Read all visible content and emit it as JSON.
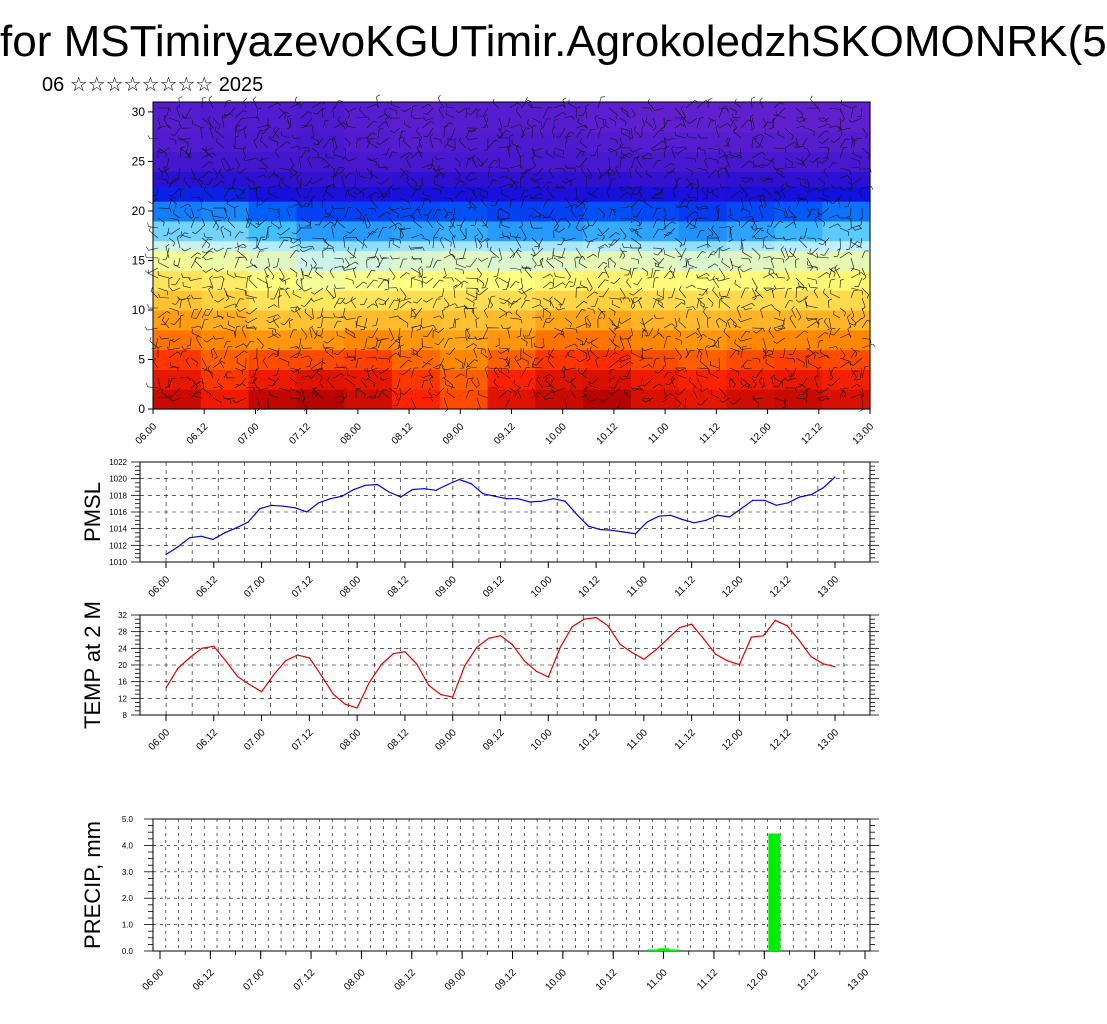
{
  "header": {
    "title": "for MSTimiryazevoKGUTimir.AgrokoledzhSKOMONRK(5",
    "subtitle": "06 ☆☆☆☆☆☆☆☆ 2025"
  },
  "chart_data": [
    {
      "type": "heatmap",
      "title": "",
      "ylim": [
        0,
        31
      ],
      "yticks": [
        0,
        5,
        10,
        15,
        20,
        25,
        30
      ],
      "xticks": [
        "06.00",
        "06.12",
        "07.00",
        "07.12",
        "08.00",
        "08.12",
        "09.00",
        "09.12",
        "10.00",
        "10.12",
        "11.00",
        "11.12",
        "12.00",
        "12.12",
        "13.00"
      ],
      "colormap": [
        "#b00000",
        "#ff2200",
        "#ff8800",
        "#ffd040",
        "#ffff80",
        "#c0f0ff",
        "#40c0ff",
        "#0060ff",
        "#1010e0",
        "#3010d0",
        "#6020d0"
      ],
      "overlay": "wind barbs",
      "levels": [
        0,
        2,
        4,
        6,
        8,
        10,
        12,
        14,
        16,
        17,
        19,
        21,
        22.5,
        24,
        26,
        28,
        31
      ],
      "values": [
        [
          0.97,
          0.92,
          0.98,
          0.99,
          0.96,
          0.9,
          0.86,
          0.94,
          0.97,
          0.99,
          0.95,
          0.93,
          0.96,
          0.97,
          0.95
        ],
        [
          0.93,
          0.88,
          0.92,
          0.94,
          0.93,
          0.88,
          0.84,
          0.9,
          0.94,
          0.95,
          0.92,
          0.9,
          0.92,
          0.93,
          0.91
        ],
        [
          0.88,
          0.84,
          0.86,
          0.86,
          0.87,
          0.83,
          0.8,
          0.84,
          0.88,
          0.89,
          0.86,
          0.84,
          0.86,
          0.87,
          0.86
        ],
        [
          0.82,
          0.8,
          0.78,
          0.78,
          0.8,
          0.78,
          0.76,
          0.78,
          0.82,
          0.82,
          0.8,
          0.78,
          0.8,
          0.8,
          0.8
        ],
        [
          0.77,
          0.75,
          0.72,
          0.72,
          0.73,
          0.73,
          0.72,
          0.73,
          0.76,
          0.76,
          0.74,
          0.73,
          0.74,
          0.74,
          0.74
        ],
        [
          0.72,
          0.7,
          0.66,
          0.65,
          0.66,
          0.67,
          0.67,
          0.67,
          0.69,
          0.7,
          0.68,
          0.67,
          0.68,
          0.68,
          0.68
        ],
        [
          0.66,
          0.64,
          0.6,
          0.58,
          0.59,
          0.6,
          0.61,
          0.6,
          0.62,
          0.63,
          0.61,
          0.6,
          0.61,
          0.62,
          0.62
        ],
        [
          0.58,
          0.57,
          0.55,
          0.52,
          0.53,
          0.54,
          0.55,
          0.54,
          0.55,
          0.56,
          0.55,
          0.54,
          0.55,
          0.56,
          0.56
        ],
        [
          0.52,
          0.51,
          0.49,
          0.46,
          0.46,
          0.47,
          0.48,
          0.47,
          0.48,
          0.49,
          0.48,
          0.46,
          0.48,
          0.49,
          0.5
        ],
        [
          0.44,
          0.44,
          0.4,
          0.36,
          0.36,
          0.37,
          0.38,
          0.36,
          0.36,
          0.38,
          0.37,
          0.35,
          0.37,
          0.39,
          0.42
        ],
        [
          0.33,
          0.34,
          0.3,
          0.26,
          0.26,
          0.27,
          0.28,
          0.26,
          0.26,
          0.28,
          0.27,
          0.25,
          0.27,
          0.29,
          0.32
        ],
        [
          0.22,
          0.22,
          0.18,
          0.16,
          0.16,
          0.17,
          0.18,
          0.17,
          0.16,
          0.18,
          0.17,
          0.16,
          0.17,
          0.18,
          0.2
        ],
        [
          0.12,
          0.12,
          0.1,
          0.09,
          0.09,
          0.1,
          0.1,
          0.1,
          0.1,
          0.1,
          0.09,
          0.09,
          0.1,
          0.1,
          0.11
        ],
        [
          0.06,
          0.06,
          0.06,
          0.06,
          0.05,
          0.05,
          0.05,
          0.05,
          0.05,
          0.05,
          0.05,
          0.05,
          0.05,
          0.05,
          0.05
        ],
        [
          0.03,
          0.04,
          0.04,
          0.05,
          0.03,
          0.02,
          0.03,
          0.04,
          0.04,
          0.03,
          0.02,
          0.02,
          0.02,
          0.02,
          0.02
        ],
        [
          0.02,
          0.03,
          0.03,
          0.04,
          0.02,
          0.01,
          0.02,
          0.02,
          0.02,
          0.01,
          0.0,
          0.0,
          0.0,
          -0.02,
          -0.02
        ],
        [
          0.02,
          0.03,
          0.02,
          0.02,
          0.0,
          0.0,
          0.0,
          -0.02,
          -0.02,
          -0.03,
          -0.04,
          -0.05,
          -0.05,
          -0.06,
          -0.08
        ]
      ]
    },
    {
      "type": "line",
      "ylabel": "PMSL",
      "ylim": [
        1010,
        1022
      ],
      "yticks": [
        1010,
        1012,
        1014,
        1016,
        1018,
        1020,
        1022
      ],
      "color": "#0000e0",
      "xticks": [
        "06.00",
        "06.12",
        "07.00",
        "07.12",
        "08.00",
        "08.12",
        "09.00",
        "09.12",
        "10.00",
        "10.12",
        "11.00",
        "11.12",
        "12.00",
        "12.12",
        "13.00"
      ],
      "values": [
        1010.9,
        1011.8,
        1012.9,
        1013.1,
        1012.7,
        1013.5,
        1014.1,
        1014.8,
        1016.4,
        1016.8,
        1016.7,
        1016.5,
        1016.0,
        1017.1,
        1017.6,
        1017.9,
        1018.7,
        1019.2,
        1019.3,
        1018.4,
        1017.8,
        1018.7,
        1018.8,
        1018.6,
        1019.3,
        1019.9,
        1019.4,
        1018.2,
        1017.9,
        1017.6,
        1017.6,
        1017.2,
        1017.3,
        1017.6,
        1017.3,
        1015.7,
        1014.3,
        1013.9,
        1013.8,
        1013.6,
        1013.4,
        1014.8,
        1015.5,
        1015.6,
        1015.1,
        1014.7,
        1015.0,
        1015.6,
        1015.4,
        1016.4,
        1017.4,
        1017.4,
        1016.8,
        1017.1,
        1017.8,
        1018.1,
        1018.9,
        1020.2
      ]
    },
    {
      "type": "line",
      "ylabel": "TEMP at 2 M",
      "ylim": [
        8,
        32
      ],
      "yticks": [
        8,
        12,
        16,
        20,
        24,
        28,
        32
      ],
      "color": "#e00000",
      "xticks": [
        "06.00",
        "06.12",
        "07.00",
        "07.12",
        "08.00",
        "08.12",
        "09.00",
        "09.12",
        "10.00",
        "10.12",
        "11.00",
        "11.12",
        "12.00",
        "12.12",
        "13.00"
      ],
      "values": [
        14.5,
        19.2,
        21.8,
        24.0,
        24.5,
        21.0,
        17.2,
        15.3,
        13.6,
        17.6,
        21.0,
        22.4,
        21.7,
        17.5,
        13.0,
        10.6,
        9.7,
        15.7,
        20.0,
        22.7,
        23.2,
        20.2,
        15.1,
        12.9,
        12.3,
        19.8,
        24.2,
        26.4,
        27.0,
        24.9,
        21.0,
        18.5,
        17.1,
        24.2,
        29.2,
        31.0,
        31.4,
        29.4,
        25.0,
        23.0,
        21.4,
        23.6,
        26.3,
        29.0,
        29.8,
        26.3,
        22.6,
        21.0,
        20.1,
        26.7,
        27.0,
        30.7,
        29.4,
        25.9,
        22.0,
        20.3,
        19.6
      ]
    },
    {
      "type": "bar",
      "ylabel": "PRECIP, mm",
      "ylim": [
        0.0,
        5.0
      ],
      "yticks": [
        "0.0",
        "1.0",
        "2.0",
        "3.0",
        "4.0",
        "5.0"
      ],
      "color": "#00ee00",
      "xticks": [
        "06.00",
        "06.12",
        "07.00",
        "07.12",
        "08.00",
        "08.12",
        "09.00",
        "09.12",
        "10.00",
        "10.12",
        "11.00",
        "11.12",
        "12.00",
        "12.12",
        "13.00"
      ],
      "x": [
        10.9,
        11.0,
        11.1,
        12.1
      ],
      "values": [
        0.06,
        0.1,
        0.06,
        4.45
      ]
    }
  ]
}
